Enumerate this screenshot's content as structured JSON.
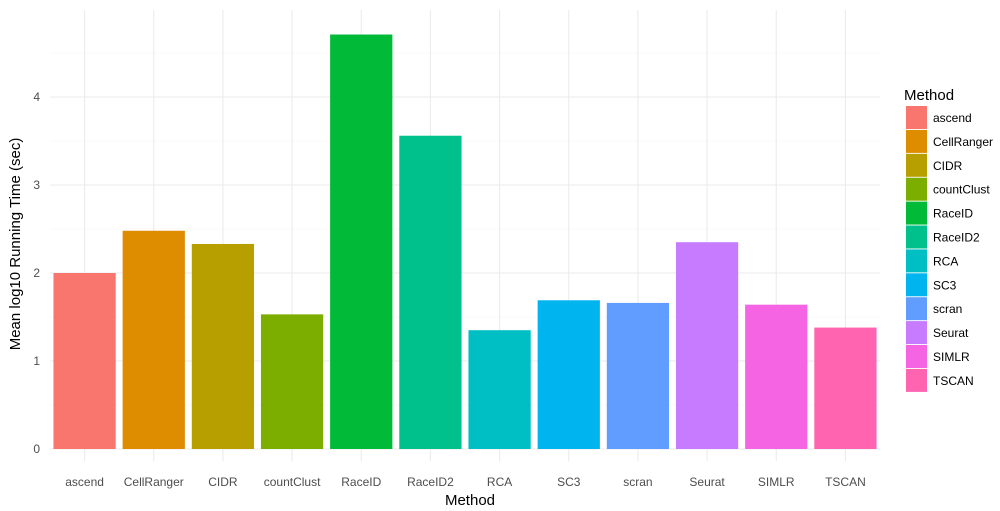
{
  "chart_data": {
    "type": "bar",
    "xlabel": "Method",
    "ylabel": "Mean log10 Running Time (sec)",
    "ylim": [
      0,
      4.75
    ],
    "yticks": [
      0,
      1,
      2,
      3,
      4
    ],
    "grid": true,
    "legend": {
      "title": "Method",
      "placement": "right"
    },
    "categories": [
      "ascend",
      "CellRanger",
      "CIDR",
      "countClust",
      "RaceID",
      "RaceID2",
      "RCA",
      "SC3",
      "scran",
      "Seurat",
      "SIMLR",
      "TSCAN"
    ],
    "values": [
      2.0,
      2.48,
      2.33,
      1.53,
      4.71,
      3.56,
      1.35,
      1.69,
      1.66,
      2.35,
      1.64,
      1.38
    ],
    "colors": [
      "#F8766D",
      "#DE8C00",
      "#B79F00",
      "#7CAE00",
      "#00BA38",
      "#00C08B",
      "#00BFC4",
      "#00B4F0",
      "#619CFF",
      "#C77CFF",
      "#F564E3",
      "#FF64B0"
    ]
  }
}
